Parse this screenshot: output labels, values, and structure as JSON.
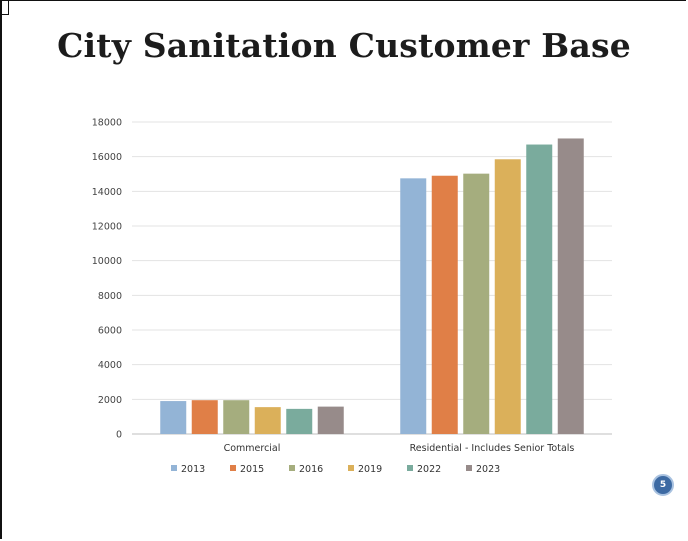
{
  "slide": {
    "title": "City Sanitation Customer Base",
    "page_number": "5"
  },
  "chart_data": {
    "type": "bar",
    "categories": [
      "Commercial",
      "Residential - Includes Senior Totals"
    ],
    "series": [
      {
        "name": "2013",
        "color": "#93b4d6",
        "values": [
          1900,
          14750
        ]
      },
      {
        "name": "2015",
        "color": "#e07f47",
        "values": [
          1950,
          14900
        ]
      },
      {
        "name": "2016",
        "color": "#a5ad7e",
        "values": [
          1950,
          15020
        ]
      },
      {
        "name": "2019",
        "color": "#dbb05a",
        "values": [
          1550,
          15850
        ]
      },
      {
        "name": "2022",
        "color": "#7aab9d",
        "values": [
          1450,
          16700
        ]
      },
      {
        "name": "2023",
        "color": "#978b8a",
        "values": [
          1580,
          17050
        ]
      }
    ],
    "yticks": [
      0,
      2000,
      4000,
      6000,
      8000,
      10000,
      12000,
      14000,
      16000,
      18000
    ],
    "ylim": [
      0,
      18000
    ],
    "grid": true,
    "legend_position": "bottom"
  }
}
